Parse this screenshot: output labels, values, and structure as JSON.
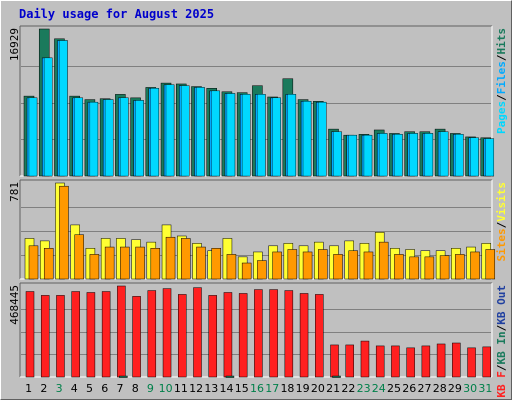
{
  "chart_data": {
    "type": "bar",
    "title": "Daily usage for August 2025",
    "categories": [
      "1",
      "2",
      "3",
      "4",
      "5",
      "6",
      "7",
      "8",
      "9",
      "10",
      "11",
      "12",
      "13",
      "14",
      "15",
      "16",
      "17",
      "18",
      "19",
      "20",
      "21",
      "22",
      "23",
      "24",
      "25",
      "26",
      "27",
      "28",
      "29",
      "30",
      "31"
    ],
    "weekend_days": [
      "3",
      "9",
      "10",
      "16",
      "17",
      "23",
      "24",
      "30",
      "31"
    ],
    "colors": {
      "hits": "#1a7a5c",
      "files": "#00aaff",
      "pages": "#00d8ff",
      "visits": "#ffff33",
      "sites": "#ff9900",
      "kbf": "#ff2020",
      "kbin": "#1a7a5c",
      "kbout": "#2040a0",
      "weekday_label": "#000000",
      "weekend_label": "#00804a"
    },
    "panels": [
      {
        "name": "hits-files",
        "ymax_label": "16929",
        "ymax": 16929,
        "series": [
          {
            "name": "Hits",
            "values": [
              9200,
              16929,
              15800,
              9200,
              8800,
              8900,
              9400,
              9000,
              10200,
              10700,
              10600,
              10300,
              10100,
              9700,
              9600,
              10400,
              9100,
              11200,
              8800,
              8600,
              5400,
              4700,
              4800,
              5300,
              4900,
              5100,
              5100,
              5400,
              4900,
              4500,
              4400
            ]
          },
          {
            "name": "Files",
            "values": [
              9000,
              13600,
              15600,
              9000,
              8500,
              8800,
              9000,
              8700,
              10100,
              10500,
              10400,
              10200,
              9800,
              9500,
              9400,
              9400,
              9000,
              9400,
              8600,
              8500,
              5100,
              4700,
              4700,
              4900,
              4800,
              4900,
              4900,
              5100,
              4800,
              4400,
              4300
            ]
          },
          {
            "name": "Pages",
            "values": [
              9000,
              13600,
              15600,
              9000,
              8500,
              8800,
              9000,
              8700,
              10100,
              10500,
              10400,
              10200,
              9800,
              9500,
              9400,
              9400,
              9000,
              9400,
              8600,
              8500,
              5100,
              4700,
              4700,
              4900,
              4800,
              4900,
              4900,
              5100,
              4800,
              4400,
              4300
            ]
          }
        ]
      },
      {
        "name": "visits-sites",
        "ymax_label": "781",
        "ymax": 781,
        "series": [
          {
            "name": "Visits",
            "values": [
              330,
              310,
              781,
              440,
              250,
              330,
              330,
              320,
              300,
              440,
              350,
              290,
              230,
              330,
              180,
              220,
              270,
              290,
              270,
              300,
              270,
              310,
              290,
              380,
              250,
              240,
              230,
              230,
              250,
              260,
              290
            ]
          },
          {
            "name": "Sites",
            "values": [
              270,
              250,
              755,
              360,
              200,
              260,
              260,
              260,
              250,
              340,
              330,
              260,
              250,
              200,
              130,
              150,
              220,
              240,
              220,
              240,
              200,
              230,
              220,
              300,
              200,
              180,
              180,
              190,
              200,
              220,
              240
            ]
          }
        ]
      },
      {
        "name": "kbytes",
        "ymax_label": "468445",
        "ymax": 468445,
        "series": [
          {
            "name": "KB F",
            "values": [
              440000,
              420000,
              420000,
              440000,
              435000,
              440000,
              468445,
              415000,
              445000,
              455000,
              425000,
              460000,
              420000,
              435000,
              430000,
              450000,
              450000,
              445000,
              430000,
              425000,
              165000,
              165000,
              185000,
              160000,
              160000,
              150000,
              160000,
              170000,
              175000,
              150000,
              155000
            ]
          },
          {
            "name": "KB In",
            "values": [
              0,
              0,
              0,
              0,
              0,
              0,
              5000,
              0,
              0,
              0,
              0,
              0,
              0,
              5000,
              0,
              0,
              0,
              0,
              0,
              0,
              5000,
              0,
              0,
              0,
              0,
              0,
              0,
              0,
              0,
              0,
              0
            ]
          },
          {
            "name": "KB Out",
            "values": [
              0,
              0,
              0,
              0,
              0,
              0,
              0,
              0,
              0,
              0,
              0,
              0,
              0,
              0,
              0,
              0,
              0,
              0,
              0,
              0,
              0,
              0,
              0,
              0,
              0,
              0,
              0,
              0,
              0,
              0,
              0
            ]
          }
        ]
      }
    ],
    "legend_right": [
      {
        "panel": "hits-files",
        "items": [
          [
            "Pages",
            "#00d8ff"
          ],
          [
            "/",
            "#000000"
          ],
          [
            "Files",
            "#00aaff"
          ],
          [
            "/",
            "#000000"
          ],
          [
            "Hits",
            "#1a7a5c"
          ]
        ]
      },
      {
        "panel": "visits-sites",
        "items": [
          [
            "Sites",
            "#ff9900"
          ],
          [
            "/",
            "#000000"
          ],
          [
            "Visits",
            "#ffff33"
          ]
        ]
      },
      {
        "panel": "kbytes",
        "items": [
          [
            "KB F",
            "#ff2020"
          ],
          [
            "/",
            "#000000"
          ],
          [
            "KB In",
            "#1a7a5c"
          ],
          [
            "/",
            "#000000"
          ],
          [
            "KB Out",
            "#2040a0"
          ]
        ]
      }
    ]
  }
}
